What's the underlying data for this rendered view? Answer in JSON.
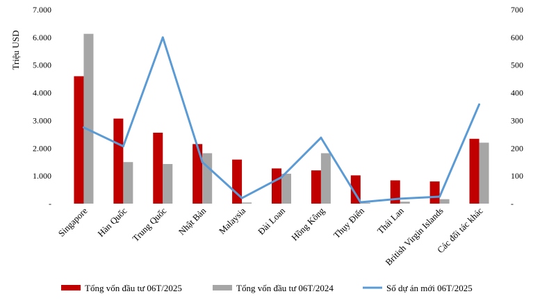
{
  "chart_data": {
    "type": "bar",
    "title": "",
    "ylabel": "Triệu USD",
    "y2label": "",
    "ylim": [
      0,
      7000
    ],
    "y2lim": [
      0,
      700
    ],
    "yticks": [
      "-",
      "1.000",
      "2.000",
      "3.000",
      "4.000",
      "5.000",
      "6.000",
      "7.000"
    ],
    "y2ticks": [
      "-",
      "100",
      "200",
      "300",
      "400",
      "500",
      "600",
      "700"
    ],
    "categories": [
      "Singapore",
      "Hàn Quốc",
      "Trung Quốc",
      "Nhật Bản",
      "Malaysia",
      "Đài Loan",
      "Hồng Kông",
      "Thụy Điển",
      "Thái Lan",
      "British Virgin Islands",
      "Các đối tác khác"
    ],
    "series": [
      {
        "name": "Tổng vốn đầu tư 06T/2025",
        "kind": "bar",
        "axis": "left",
        "color": "#c00000",
        "values": [
          4600,
          3070,
          2560,
          2150,
          1590,
          1270,
          1200,
          1020,
          840,
          800,
          2340
        ]
      },
      {
        "name": "Tổng vốn đầu tư 06T/2024",
        "kind": "bar",
        "axis": "left",
        "color": "#a6a6a6",
        "values": [
          6130,
          1500,
          1430,
          1820,
          40,
          1080,
          1820,
          30,
          70,
          160,
          2200
        ]
      },
      {
        "name": "Số dự án mới 06T/2025",
        "kind": "line",
        "axis": "right",
        "color": "#5b9bd5",
        "values": [
          275,
          207,
          600,
          150,
          20,
          95,
          238,
          5,
          18,
          25,
          358
        ]
      }
    ],
    "grid": false,
    "legend": "bottom"
  }
}
